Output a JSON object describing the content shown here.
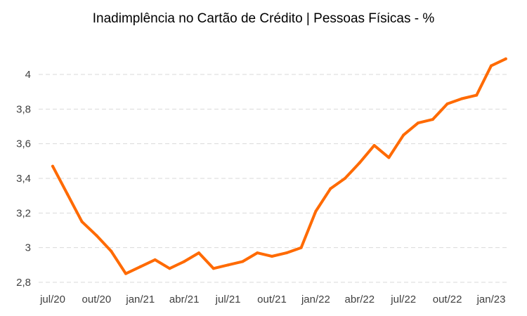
{
  "chart_data": {
    "type": "line",
    "title": "Inadimplência no Cartão de Crédito | Pessoas Físicas - %",
    "xlabel": "",
    "ylabel": "",
    "ylim": [
      2.8,
      4.0
    ],
    "y_ticks": [
      2.8,
      3,
      3.2,
      3.4,
      3.6,
      3.8,
      4
    ],
    "y_tick_labels": [
      "2,8",
      "3",
      "3,2",
      "3,4",
      "3,6",
      "3,8",
      "4"
    ],
    "x_tick_labels": [
      "jul/20",
      "out/20",
      "jan/21",
      "abr/21",
      "jul/21",
      "out/21",
      "jan/22",
      "abr/22",
      "jul/22",
      "out/22",
      "jan/23"
    ],
    "grid": "horizontal dashed",
    "line_color": "#ff6a00",
    "grid_color": "#d9d9d9",
    "categories": [
      "jul/20",
      "ago/20",
      "set/20",
      "out/20",
      "nov/20",
      "dez/20",
      "jan/21",
      "fev/21",
      "mar/21",
      "abr/21",
      "mai/21",
      "jun/21",
      "jul/21",
      "ago/21",
      "set/21",
      "out/21",
      "nov/21",
      "dez/21",
      "jan/22",
      "fev/22",
      "mar/22",
      "abr/22",
      "mai/22",
      "jun/22",
      "jul/22",
      "ago/22",
      "set/22",
      "out/22",
      "nov/22",
      "dez/22",
      "jan/23",
      "fev/23"
    ],
    "series": [
      {
        "values": [
          3.47,
          3.31,
          3.15,
          3.07,
          2.98,
          2.85,
          2.89,
          2.93,
          2.88,
          2.92,
          2.97,
          2.88,
          2.9,
          2.92,
          2.97,
          2.95,
          2.97,
          3.0,
          3.21,
          3.34,
          3.4,
          3.49,
          3.59,
          3.52,
          3.65,
          3.72,
          3.74,
          3.83,
          3.86,
          3.88,
          4.05,
          4.09
        ]
      }
    ]
  }
}
